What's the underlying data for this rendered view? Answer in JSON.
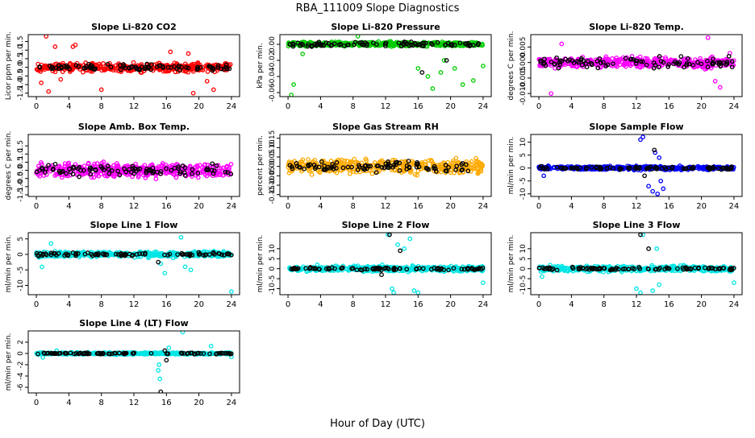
{
  "figure": {
    "title": "RBA_111009  Slope Diagnostics",
    "xlabel": "Hour of Day (UTC)"
  },
  "chart_data": [
    {
      "type": "scatter",
      "title": "Slope Li-820 CO2",
      "ylabel": "Licor ppm per min.",
      "ylim": [
        -1.7,
        1.9
      ],
      "xlim": [
        -1,
        25
      ],
      "xticks": [
        0,
        4,
        8,
        12,
        16,
        20,
        24
      ],
      "yticks": [
        -1.5,
        -1,
        -0.5,
        0,
        0.5,
        1,
        1.5
      ],
      "yticklabels": [
        "-1.5",
        "-1.0",
        "-0.5",
        "0.0",
        "0.5",
        "1.0",
        "1.5"
      ],
      "color": "#ff0000",
      "series": [
        {
          "color": "#ff0000",
          "spread": 0.35,
          "outliers": [
            [
              1.2,
              1.8
            ],
            [
              2.3,
              1.2
            ],
            [
              1.5,
              -1.4
            ],
            [
              0.6,
              -0.9
            ],
            [
              4.5,
              1.2
            ],
            [
              4.8,
              1.3
            ],
            [
              3.0,
              -0.7
            ],
            [
              16.5,
              0.9
            ],
            [
              18.7,
              0.8
            ],
            [
              21.0,
              -0.8
            ],
            [
              19.3,
              -1.5
            ],
            [
              21.8,
              -1.3
            ],
            [
              8.0,
              -1.3
            ]
          ],
          "points": []
        },
        {
          "color": "#000000",
          "spread": 0.25,
          "outliers": [],
          "points": []
        }
      ]
    },
    {
      "type": "scatter",
      "title": "Slope Li-820 Pressure",
      "ylabel": "kPa per min.",
      "ylim": [
        -0.065,
        0.012
      ],
      "xlim": [
        -1,
        25
      ],
      "xticks": [
        0,
        4,
        8,
        12,
        16,
        20,
        24
      ],
      "yticks": [
        -0.06,
        -0.04,
        -0.02,
        0
      ],
      "yticklabels": [
        "-0.06",
        "-0.04",
        "-0.02",
        "0.00"
      ],
      "color": "#00cc00",
      "series": [
        {
          "color": "#00cc00",
          "spread": 0.004,
          "outliers": [
            [
              0.7,
              -0.05
            ],
            [
              0.4,
              -0.063
            ],
            [
              1.8,
              -0.012
            ],
            [
              17.2,
              -0.04
            ],
            [
              17.8,
              -0.055
            ],
            [
              18.8,
              -0.035
            ],
            [
              19.2,
              -0.02
            ],
            [
              20.5,
              -0.03
            ],
            [
              21.5,
              -0.05
            ],
            [
              22.8,
              -0.045
            ],
            [
              24.0,
              -0.027
            ],
            [
              16.0,
              -0.03
            ],
            [
              8.6,
              0.01
            ]
          ],
          "points": []
        },
        {
          "color": "#000000",
          "spread": 0.004,
          "outliers": [
            [
              16.5,
              -0.035
            ],
            [
              19.5,
              -0.02
            ]
          ],
          "points": []
        }
      ]
    },
    {
      "type": "scatter",
      "title": "Slope Li-820 Temp.",
      "ylabel": "degrees C per min.",
      "ylim": [
        -0.011,
        0.009
      ],
      "xlim": [
        -1,
        25
      ],
      "xticks": [
        0,
        4,
        8,
        12,
        16,
        20,
        24
      ],
      "yticks": [
        -0.01,
        -0.005,
        0,
        0.005
      ],
      "yticklabels": [
        "-0.010",
        "-0.005",
        "0.000",
        "0.005"
      ],
      "color": "#ff00ff",
      "series": [
        {
          "color": "#ff00ff",
          "spread": 0.0025,
          "outliers": [
            [
              1.5,
              -0.01
            ],
            [
              2.8,
              0.006
            ],
            [
              20.8,
              0.008
            ],
            [
              21.7,
              -0.006
            ],
            [
              22.3,
              -0.008
            ],
            [
              23.5,
              0.003
            ]
          ],
          "points": []
        },
        {
          "color": "#000000",
          "spread": 0.0025,
          "outliers": [],
          "points": []
        }
      ]
    },
    {
      "type": "scatter",
      "title": "Slope Amb. Box Temp.",
      "ylabel": "degrees C per min.",
      "ylim": [
        -1.6,
        2.2
      ],
      "xlim": [
        -1,
        25
      ],
      "xticks": [
        0,
        4,
        8,
        12,
        16,
        20,
        24
      ],
      "yticks": [
        -1.5,
        -1,
        -0.5,
        0,
        0.5,
        1,
        1.5
      ],
      "yticklabels": [
        "-1.5",
        "-1.0",
        "-0.5",
        "0.0",
        "0.5",
        "1.0",
        "1.5"
      ],
      "color": "#ff00ff",
      "series": [
        {
          "color": "#ff00ff",
          "spread": 0.6,
          "outliers": [],
          "points": []
        },
        {
          "color": "#000000",
          "spread": 0.5,
          "outliers": [],
          "points": []
        }
      ]
    },
    {
      "type": "scatter",
      "title": "Slope Gas Stream RH",
      "ylabel": "percent per min.",
      "ylim": [
        -0.16,
        0.17
      ],
      "xlim": [
        -1,
        25
      ],
      "xticks": [
        0,
        4,
        8,
        12,
        16,
        20,
        24
      ],
      "yticks": [
        -0.15,
        -0.1,
        -0.05,
        0,
        0.05,
        0.1,
        0.15
      ],
      "yticklabels": [
        "-0.15",
        "-0.10",
        "-0.05",
        "0.00",
        "0.05",
        "0.10",
        "0.15"
      ],
      "color": "#ffaa00",
      "series": [
        {
          "color": "#ffaa00",
          "spread": 0.055,
          "outliers": [],
          "points": []
        },
        {
          "color": "#000000",
          "spread": 0.04,
          "outliers": [],
          "points": []
        }
      ]
    },
    {
      "type": "scatter",
      "title": "Slope Sample Flow",
      "ylabel": "ml/min per min.",
      "ylim": [
        -11,
        13
      ],
      "xlim": [
        -1,
        25
      ],
      "xticks": [
        0,
        4,
        8,
        12,
        16,
        20,
        24
      ],
      "yticks": [
        -10,
        -5,
        0,
        5,
        10
      ],
      "yticklabels": [
        "-10",
        "-5",
        "0",
        "5",
        "10"
      ],
      "color": "#0000ff",
      "series": [
        {
          "color": "#0000ff",
          "spread": 1.0,
          "outliers": [
            [
              12.5,
              11
            ],
            [
              12.8,
              12
            ],
            [
              14.3,
              6
            ],
            [
              14.8,
              4
            ],
            [
              15.0,
              -5
            ],
            [
              13.5,
              -7
            ],
            [
              14.0,
              -9
            ],
            [
              14.6,
              -10
            ],
            [
              15.3,
              -8
            ],
            [
              0.6,
              -3
            ]
          ],
          "points": []
        },
        {
          "color": "#000000",
          "spread": 0.8,
          "outliers": [
            [
              14.2,
              7
            ],
            [
              13.0,
              -3
            ]
          ],
          "points": []
        }
      ]
    },
    {
      "type": "scatter",
      "title": "Slope Line 1 Flow",
      "ylabel": "ml/min per min.",
      "ylim": [
        -13,
        7
      ],
      "xlim": [
        -1,
        25
      ],
      "xticks": [
        0,
        4,
        8,
        12,
        16,
        20,
        24
      ],
      "yticks": [
        -10,
        -5,
        0,
        5
      ],
      "yticklabels": [
        "-10",
        "-5",
        "0",
        "5"
      ],
      "color": "#00e5e5",
      "series": [
        {
          "color": "#00e5e5",
          "spread": 1.2,
          "outliers": [
            [
              1.8,
              3.5
            ],
            [
              17.8,
              5.5
            ],
            [
              15.3,
              -3
            ],
            [
              15.8,
              -6
            ],
            [
              18.3,
              -4
            ],
            [
              19.0,
              -5
            ],
            [
              24.0,
              -12
            ],
            [
              0.7,
              -4
            ]
          ],
          "points": []
        },
        {
          "color": "#000000",
          "spread": 0.8,
          "outliers": [
            [
              15.0,
              -2.5
            ]
          ],
          "points": []
        }
      ]
    },
    {
      "type": "scatter",
      "title": "Slope Line 2 Flow",
      "ylabel": "ml/min per min.",
      "ylim": [
        -13,
        18
      ],
      "xlim": [
        -1,
        25
      ],
      "xticks": [
        0,
        4,
        8,
        12,
        16,
        20,
        24
      ],
      "yticks": [
        -10,
        -5,
        0,
        5,
        10
      ],
      "yticklabels": [
        "-10",
        "-5",
        "0",
        "5",
        "10"
      ],
      "color": "#00e5e5",
      "series": [
        {
          "color": "#00e5e5",
          "spread": 2.0,
          "outliers": [
            [
              12.3,
              17
            ],
            [
              13.5,
              12
            ],
            [
              14.3,
              10
            ],
            [
              15.0,
              15
            ],
            [
              12.8,
              -10
            ],
            [
              13.0,
              -12
            ],
            [
              15.5,
              -11
            ],
            [
              16.0,
              -12
            ],
            [
              24.0,
              -7
            ]
          ],
          "points": []
        },
        {
          "color": "#000000",
          "spread": 1.0,
          "outliers": [
            [
              12.5,
              17
            ],
            [
              13.8,
              9
            ],
            [
              11.5,
              -3
            ]
          ],
          "points": []
        }
      ]
    },
    {
      "type": "scatter",
      "title": "Slope Line 3 Flow",
      "ylabel": "ml/min per min.",
      "ylim": [
        -13,
        18
      ],
      "xlim": [
        -1,
        25
      ],
      "xticks": [
        0,
        4,
        8,
        12,
        16,
        20,
        24
      ],
      "yticks": [
        -10,
        -5,
        0,
        5,
        10
      ],
      "yticklabels": [
        "-10",
        "-5",
        "0",
        "5",
        "10"
      ],
      "color": "#00e5e5",
      "series": [
        {
          "color": "#00e5e5",
          "spread": 2.0,
          "outliers": [
            [
              12.8,
              17
            ],
            [
              14.5,
              10
            ],
            [
              12.0,
              -10
            ],
            [
              12.5,
              -12
            ],
            [
              14.0,
              -11
            ],
            [
              14.8,
              -8
            ],
            [
              24.0,
              -7
            ],
            [
              0.4,
              -4
            ]
          ],
          "points": []
        },
        {
          "color": "#000000",
          "spread": 1.0,
          "outliers": [
            [
              12.5,
              17
            ],
            [
              13.5,
              10
            ]
          ],
          "points": []
        }
      ]
    },
    {
      "type": "scatter",
      "title": "Slope Line 4 (LT) Flow",
      "ylabel": "ml/min per min.",
      "ylim": [
        -7,
        4
      ],
      "xlim": [
        -1,
        25
      ],
      "xticks": [
        0,
        4,
        8,
        12,
        16,
        20,
        24
      ],
      "yticks": [
        -6,
        -4,
        -2,
        0,
        2
      ],
      "yticklabels": [
        "-6",
        "-4",
        "-2",
        "0",
        "2"
      ],
      "color": "#00e5e5",
      "series": [
        {
          "color": "#00e5e5",
          "spread": 0.25,
          "outliers": [
            [
              18.0,
              3.8
            ],
            [
              21.5,
              1.3
            ],
            [
              2.5,
              0.5
            ],
            [
              15.1,
              -2
            ],
            [
              15.2,
              -4.5
            ],
            [
              15.0,
              -3
            ],
            [
              16.3,
              1.0
            ],
            [
              24.0,
              -0.6
            ],
            [
              0.8,
              -0.7
            ]
          ],
          "points": []
        },
        {
          "color": "#000000",
          "spread": 0.2,
          "outliers": [
            [
              15.3,
              -6.8
            ],
            [
              16.0,
              -1.2
            ],
            [
              15.8,
              0.5
            ]
          ],
          "points": []
        }
      ]
    }
  ]
}
